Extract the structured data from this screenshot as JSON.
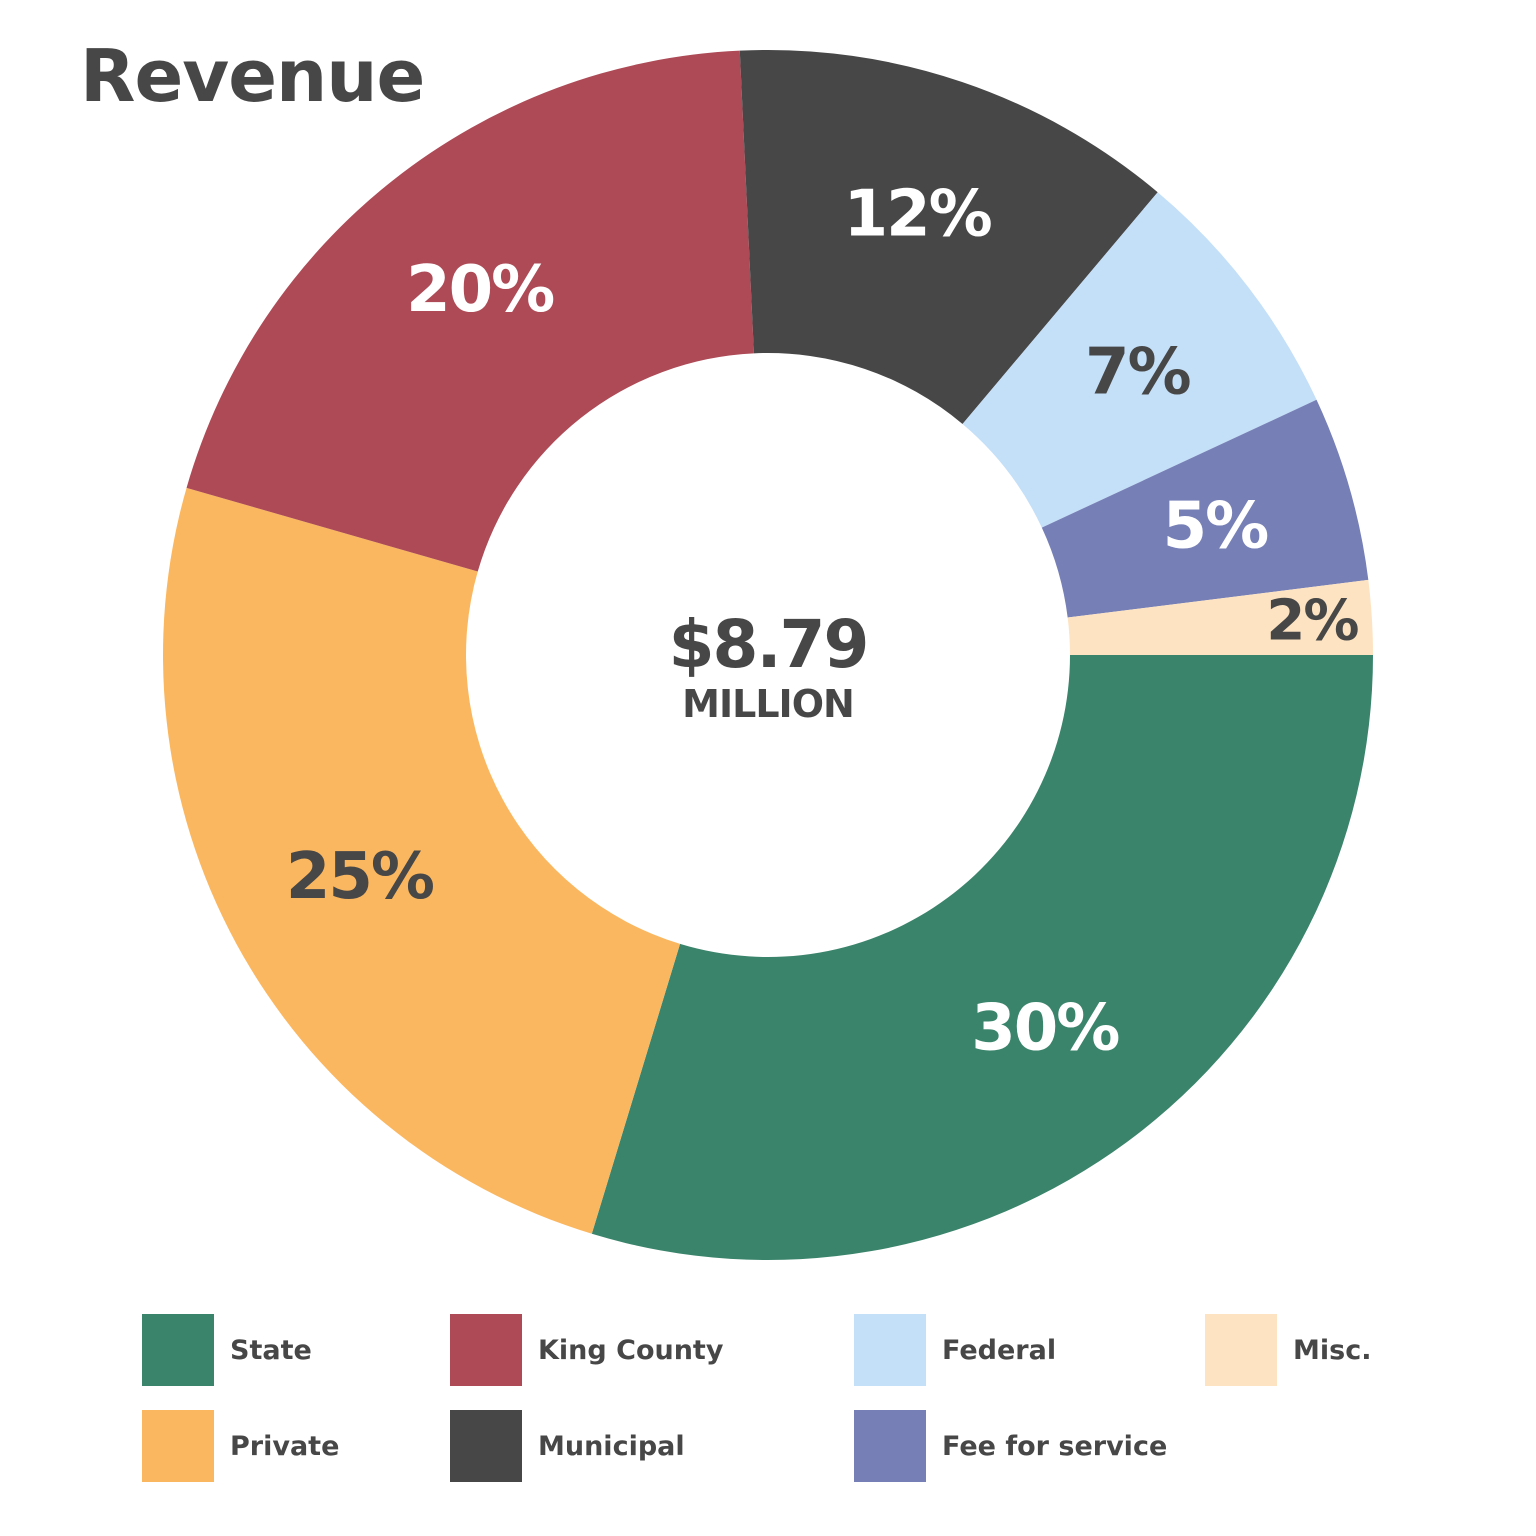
{
  "chart_data": {
    "type": "pie",
    "title": "Revenue",
    "center_value": "$8.79",
    "center_unit": "MILLION",
    "legend_position": "bottom",
    "slices": [
      {
        "name": "State",
        "value": 30,
        "label": "30%",
        "color": "#3a846b",
        "label_color": "#ffffff"
      },
      {
        "name": "Private",
        "value": 25,
        "label": "25%",
        "color": "#fbb75f",
        "label_color": "#474747"
      },
      {
        "name": "King County",
        "value": 20,
        "label": "20%",
        "color": "#ad4a56",
        "label_color": "#ffffff"
      },
      {
        "name": "Municipal",
        "value": 12,
        "label": "12%",
        "color": "#474747",
        "label_color": "#ffffff"
      },
      {
        "name": "Federal",
        "value": 7,
        "label": "7%",
        "color": "#c4dff8",
        "label_color": "#474747"
      },
      {
        "name": "Fee for service",
        "value": 5,
        "label": "5%",
        "color": "#767fb6",
        "label_color": "#ffffff"
      },
      {
        "name": "Misc.",
        "value": 2,
        "label": "2%",
        "color": "#fde3c1",
        "label_color": "#474747"
      }
    ],
    "legend": [
      {
        "name": "State",
        "color": "#3a846b"
      },
      {
        "name": "King County",
        "color": "#ad4a56"
      },
      {
        "name": "Federal",
        "color": "#c4dff8"
      },
      {
        "name": "Misc.",
        "color": "#fde3c1"
      },
      {
        "name": "Private",
        "color": "#fbb75f"
      },
      {
        "name": "Municipal",
        "color": "#474747"
      },
      {
        "name": "Fee for service",
        "color": "#767fb6"
      }
    ]
  }
}
